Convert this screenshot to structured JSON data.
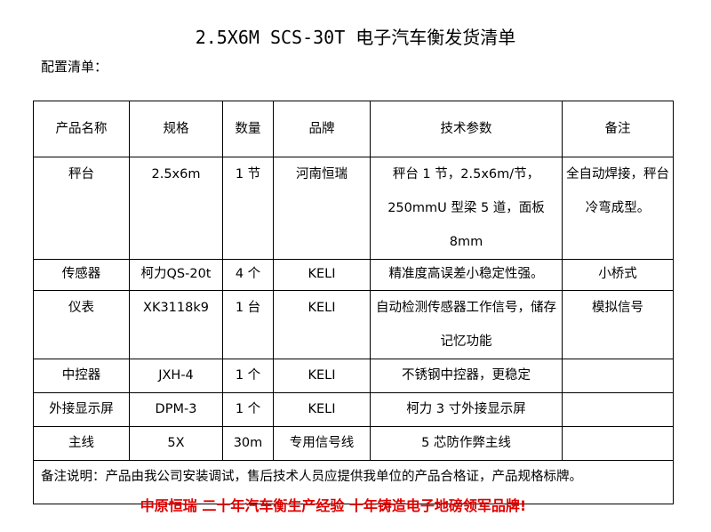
{
  "title": "2.5X6M SCS-30T 电子汽车衡发货清单",
  "subtitle": "配置清单：",
  "table": {
    "headers": [
      "产品名称",
      "规格",
      "数量",
      "品牌",
      "技术参数",
      "备注"
    ],
    "rows": [
      [
        "秤台",
        "2.5x6m",
        "1 节",
        "河南恒瑞",
        "秤台 1 节，2.5x6m/节，250mmU 型梁 5 道，面板 8mm",
        "全自动焊接，秤台冷弯成型。"
      ],
      [
        "传感器",
        "柯力QS-20t",
        "4 个",
        "KELI",
        "精准度高误差小稳定性强。",
        "小桥式"
      ],
      [
        "仪表",
        "XK3118k9",
        "1 台",
        "KELI",
        "自动检测传感器工作信号，储存记忆功能",
        "模拟信号"
      ],
      [
        "中控器",
        "JXH-4",
        "1 个",
        "KELI",
        "不锈钢中控器，更稳定",
        ""
      ],
      [
        "外接显示屏",
        "DPM-3",
        "1 个",
        "KELI",
        "柯力 3 寸外接显示屏",
        ""
      ],
      [
        "主线",
        "5X",
        "30m",
        "专用信号线",
        "5 芯防作弊主线",
        ""
      ]
    ],
    "note": "备注说明：产品由我公司安装调试，售后技术人员应提供我单位的产品合格证，产品规格标牌。"
  },
  "slogan": "中原恒瑞 二十年汽车衡生产经验 十年铸造电子地磅领军品牌!",
  "colors": {
    "slogan": "#e00000"
  }
}
